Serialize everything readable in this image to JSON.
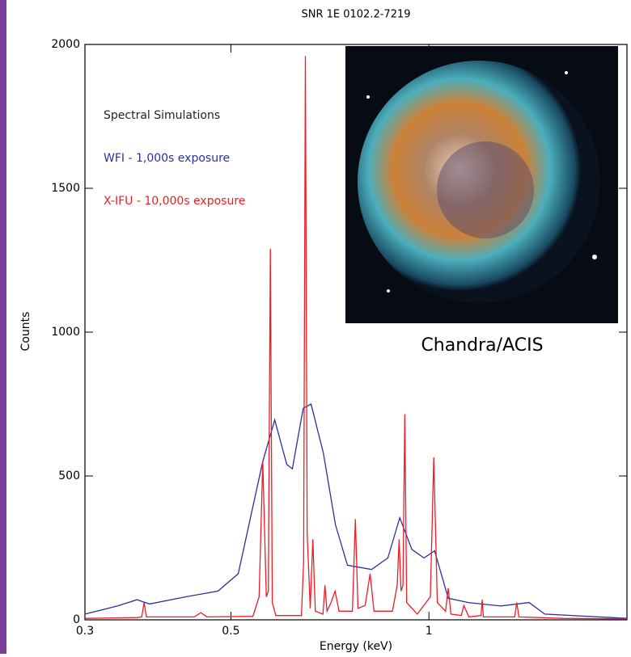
{
  "chart_data": {
    "type": "line",
    "title": "SNR 1E 0102.2-7219",
    "x_label": "Energy (keV)",
    "y_label": "Counts",
    "legend_title": "Spectral Simulations",
    "annotation": "Chandra/ACIS",
    "log_x": true,
    "xlim": [
      0.3,
      2.0
    ],
    "xticks": [
      0.3,
      0.5,
      1
    ],
    "ylim": [
      0,
      2000
    ],
    "yticks": [
      0,
      500,
      1000,
      1500,
      2000
    ],
    "legend": "upper left",
    "series": [
      {
        "name": "WFI - 1,000s exposure",
        "color": "#2b2fa0",
        "x": [
          0.3,
          0.336,
          0.36,
          0.376,
          0.427,
          0.478,
          0.513,
          0.536,
          0.559,
          0.583,
          0.608,
          0.62,
          0.644,
          0.662,
          0.691,
          0.721,
          0.752,
          0.818,
          0.866,
          0.903,
          0.942,
          0.983,
          1.02,
          1.07,
          1.148,
          1.285,
          1.42,
          1.5,
          2.0
        ],
        "values": [
          20,
          48,
          70,
          55,
          80,
          100,
          160,
          360,
          550,
          695,
          540,
          525,
          735,
          750,
          580,
          330,
          190,
          175,
          215,
          355,
          245,
          215,
          240,
          75,
          60,
          48,
          60,
          20,
          5
        ]
      },
      {
        "name": "X-IFU - 10,000s exposure",
        "color": "#ee1c25",
        "x": [
          0.3,
          0.36,
          0.366,
          0.369,
          0.372,
          0.44,
          0.45,
          0.46,
          0.54,
          0.552,
          0.559,
          0.566,
          0.57,
          0.574,
          0.578,
          0.585,
          0.64,
          0.645,
          0.649,
          0.653,
          0.66,
          0.666,
          0.672,
          0.69,
          0.695,
          0.7,
          0.71,
          0.72,
          0.73,
          0.765,
          0.773,
          0.78,
          0.8,
          0.814,
          0.825,
          0.88,
          0.895,
          0.901,
          0.907,
          0.913,
          0.919,
          0.925,
          0.96,
          1.005,
          1.017,
          1.03,
          1.06,
          1.07,
          1.08,
          1.12,
          1.13,
          1.15,
          1.2,
          1.205,
          1.21,
          1.35,
          1.36,
          1.37,
          1.6,
          2.0
        ],
        "values": [
          5,
          8,
          10,
          60,
          10,
          10,
          25,
          10,
          12,
          80,
          550,
          80,
          100,
          1290,
          60,
          15,
          15,
          200,
          1960,
          300,
          40,
          280,
          30,
          20,
          120,
          30,
          60,
          100,
          30,
          30,
          350,
          40,
          50,
          160,
          30,
          30,
          120,
          280,
          100,
          120,
          715,
          60,
          20,
          80,
          565,
          60,
          30,
          110,
          20,
          15,
          50,
          10,
          15,
          70,
          10,
          10,
          60,
          10,
          5,
          3
        ]
      }
    ]
  }
}
